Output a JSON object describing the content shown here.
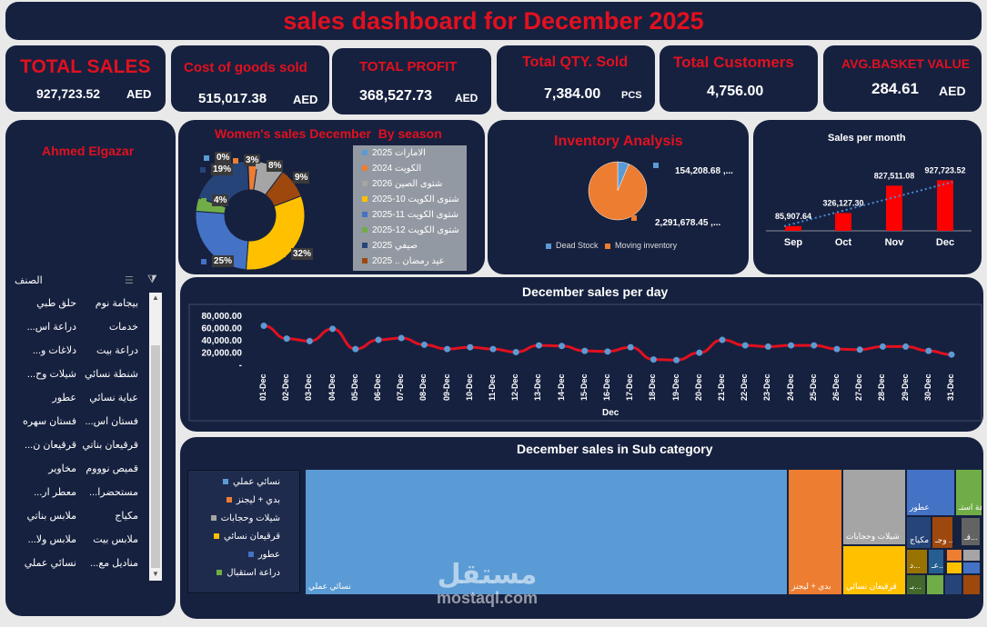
{
  "title": "sales dashboard for December 2025",
  "kpis": [
    {
      "title": "TOTAL SALES",
      "value": "927,723.52",
      "unit": "AED"
    },
    {
      "title": "Cost of goods sold",
      "value": "515,017.38",
      "unit": "AED"
    },
    {
      "title": "TOTAL PROFIT",
      "value": "368,527.73",
      "unit": "AED"
    },
    {
      "title": "Total QTY. Sold",
      "value": "7,384.00",
      "unit": "PCS"
    },
    {
      "title": "Total Customers",
      "value": "4,756.00",
      "unit": ""
    },
    {
      "title": "AVG.BASKET VALUE",
      "value": "284.61",
      "unit": "AED"
    }
  ],
  "slicer": {
    "owner": "Ahmed Elgazar",
    "header": "الصنف",
    "items": [
      [
        "بيجامة نوم",
        "حلق طبي"
      ],
      [
        "خدمات",
        "دراعة اس..."
      ],
      [
        "دراعة بيت",
        "دلاغات و..."
      ],
      [
        "شنطة نسائي",
        "شيلات وح..."
      ],
      [
        "عباية نسائي",
        "عطور"
      ],
      [
        "فستان اس...",
        "فستان سهره"
      ],
      [
        "قرقيعان بناتي",
        "قرقيعان ن..."
      ],
      [
        "قميص نوووم",
        "مخاوير"
      ],
      [
        "مستحضرا...",
        "معطر ار..."
      ],
      [
        "مكياج",
        "ملابس بناتي"
      ],
      [
        "ملابس بيت",
        "ملابس ولا..."
      ],
      [
        "مناديل مع...",
        "نسائي عملي"
      ]
    ]
  },
  "colors": {
    "panel": "#16213f",
    "accent_red": "#e2101f",
    "blue": "#4472c4",
    "orange": "#ed7d31",
    "gray": "#a5a5a5",
    "yellow": "#ffc000",
    "lightblue": "#5b9bd5",
    "green": "#70ad47",
    "darkblue": "#264478",
    "brown": "#9e480e"
  },
  "watermark": {
    "arabic": "مستقل",
    "latin": "mostaql.com"
  },
  "chart_data": [
    {
      "type": "pie",
      "title": "Women's sales December  By season",
      "labels": [
        "الامارات 2025",
        "الكويت 2024",
        "شتوى الصين 2026",
        "شتوى الكويت 10-2025",
        "شتوى الكويت 11-2025",
        "شتوى الكويت 12-2025",
        "صيفي 2025",
        "عيد رمضان .. 2025"
      ],
      "values": [
        0,
        3,
        8,
        32,
        25,
        4,
        19,
        9
      ],
      "value_labels": [
        "0%",
        "3%",
        "8%",
        "32%",
        "25%",
        "4%",
        "19%",
        "9%"
      ],
      "colors": [
        "#5b9bd5",
        "#ed7d31",
        "#a5a5a5",
        "#ffc000",
        "#4472c4",
        "#70ad47",
        "#264478",
        "#9e480e"
      ],
      "legend": "right"
    },
    {
      "type": "pie",
      "title": "Inventory Analysis",
      "labels": [
        "Dead Stock",
        "Moving inventory"
      ],
      "values": [
        154208.68,
        2291678.45
      ],
      "value_labels": [
        "154,208.68 ,...",
        "2,291,678.45 ,..."
      ],
      "colors": [
        "#5b9bd5",
        "#ed7d31"
      ],
      "legend": "bottom"
    },
    {
      "type": "bar",
      "title": "Sales per month",
      "categories": [
        "Sep",
        "Oct",
        "Nov",
        "Dec"
      ],
      "values": [
        85907.64,
        326127.3,
        827511.08,
        927723.52
      ],
      "value_labels": [
        "85,907.64",
        "326,127.30",
        "827,511.08",
        "927,723.52"
      ],
      "trendline": true,
      "color": "#ff0000"
    },
    {
      "type": "line",
      "title": "December sales per day",
      "xlabel": "Dec",
      "yticks": [
        "80,000.00",
        "60,000.00",
        "40,000.00",
        "20,000.00",
        "-"
      ],
      "ylim": [
        0,
        80000
      ],
      "x": [
        "01-Dec",
        "02-Dec",
        "03-Dec",
        "04-Dec",
        "05-Dec",
        "06-Dec",
        "07-Dec",
        "08-Dec",
        "09-Dec",
        "10-Dec",
        "11-Dec",
        "12-Dec",
        "13-Dec",
        "14-Dec",
        "15-Dec",
        "16-Dec",
        "17-Dec",
        "18-Dec",
        "19-Dec",
        "20-Dec",
        "21-Dec",
        "22-Dec",
        "23-Dec",
        "24-Dec",
        "25-Dec",
        "26-Dec",
        "27-Dec",
        "28-Dec",
        "29-Dec",
        "30-Dec",
        "31-Dec"
      ],
      "values": [
        63000,
        42000,
        38000,
        58000,
        25000,
        40000,
        43000,
        32000,
        25000,
        28000,
        25000,
        20000,
        31000,
        30000,
        22000,
        21000,
        28000,
        8000,
        7000,
        19000,
        40000,
        31000,
        29000,
        31000,
        31000,
        25000,
        24000,
        29000,
        29000,
        22000,
        16000
      ]
    },
    {
      "type": "table",
      "title": "December sales in Sub category",
      "legend_items": [
        "نسائي عملي",
        "بدي + ليجنز",
        "شيلات وحجابات",
        "قرقيعان نسائي",
        "عطور",
        "دراعة استقبال"
      ],
      "tiles": [
        {
          "label": "نسائي عملي",
          "color": "#5b9bd5"
        },
        {
          "label": "بدي + ليجنز",
          "color": "#ed7d31"
        },
        {
          "label": "شيلات وحجابات",
          "color": "#a5a5a5"
        },
        {
          "label": "قرقيعان نسائي",
          "color": "#ffc000"
        },
        {
          "label": "عطور",
          "color": "#4472c4"
        },
        {
          "label": "دراعة استـ...",
          "color": "#70ad47"
        },
        {
          "label": "مكياج",
          "color": "#264478"
        },
        {
          "label": "دلا... وجـ...",
          "color": "#9e480e"
        },
        {
          "label": "قـ...",
          "color": "#636363"
        },
        {
          "label": "د...",
          "color": "#997300"
        },
        {
          "label": "عـ...",
          "color": "#255e91"
        },
        {
          "label": "بـ...",
          "color": "#43682b"
        }
      ]
    }
  ]
}
